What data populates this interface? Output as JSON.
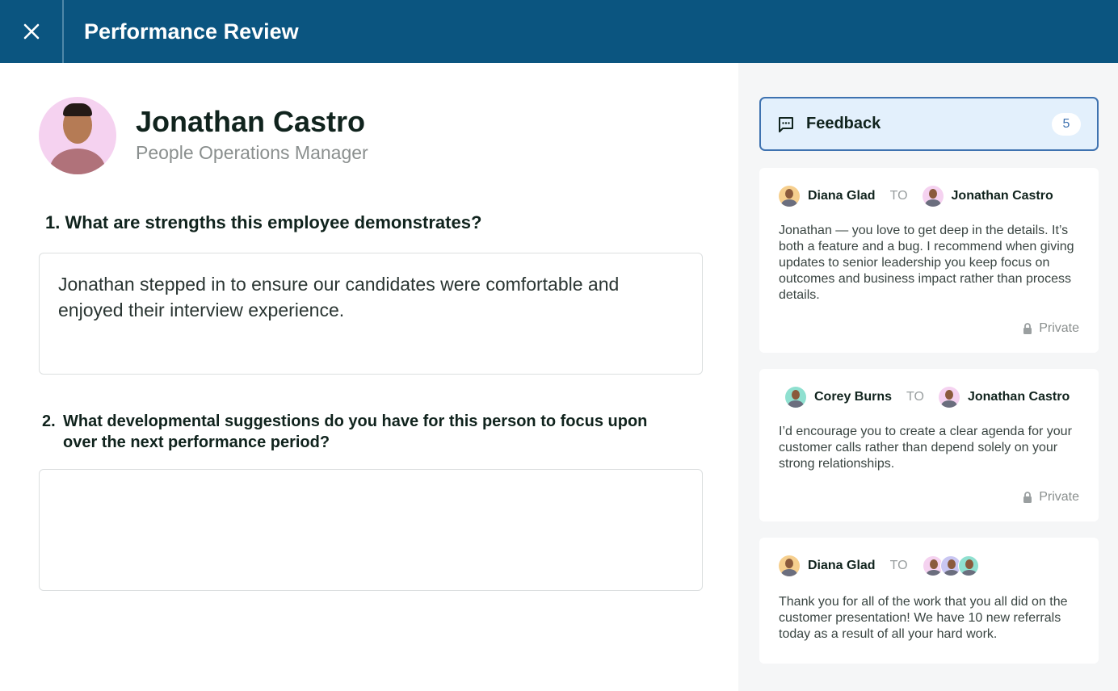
{
  "header": {
    "title": "Performance Review",
    "close_icon": "close-icon"
  },
  "employee": {
    "name": "Jonathan Castro",
    "role": "People Operations Manager"
  },
  "questions": [
    {
      "number": "1.",
      "text": "What are strengths this employee demonstrates?",
      "answer": "Jonathan stepped in to ensure our candidates were comfortable and enjoyed their interview experience."
    },
    {
      "number": "2.",
      "text": "What developmental suggestions do you have for this person to focus upon over the next performance period?",
      "answer": ""
    }
  ],
  "feedback": {
    "label": "Feedback",
    "count": "5",
    "icon": "chat-icon",
    "items": [
      {
        "from": "Diana Glad",
        "to_label": "TO",
        "to": "Jonathan Castro",
        "message": "Jonathan — you love to get deep in the details. It’s both a feature and a bug. I recommend when giving updates to senior leadership you keep focus on outcomes and business impact rather than process details.",
        "visibility": "Private"
      },
      {
        "from": "Corey Burns",
        "to_label": "TO",
        "to": "Jonathan Castro",
        "message": "I’d encourage you to create a clear agenda for your customer calls rather than depend solely on your strong relationships.",
        "visibility": "Private"
      },
      {
        "from": "Diana Glad",
        "to_label": "TO",
        "message": "Thank you for all of the work that you all did on the customer presentation! We have 10 new referrals today as a result of all your hard work."
      }
    ]
  },
  "colors": {
    "header": "#0b5580",
    "accent": "#3e72b0",
    "feedback_bg": "#e3f0fc"
  }
}
